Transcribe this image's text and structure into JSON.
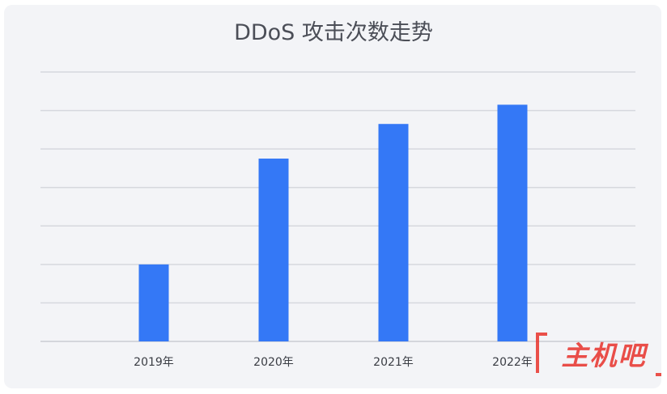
{
  "chart_data": {
    "type": "bar",
    "title": "DDoS 攻击次数走势",
    "xlabel": "",
    "ylabel": "",
    "categories": [
      "2019年",
      "2020年",
      "2021年",
      "2022年"
    ],
    "values": [
      2,
      4.75,
      5.65,
      6.15
    ],
    "ylim": [
      0,
      7
    ],
    "grid": true,
    "bar_color": "#3478f6",
    "y_tick_labels_shown": false
  },
  "watermark": {
    "text": "主机吧",
    "color": "#e8322b"
  }
}
